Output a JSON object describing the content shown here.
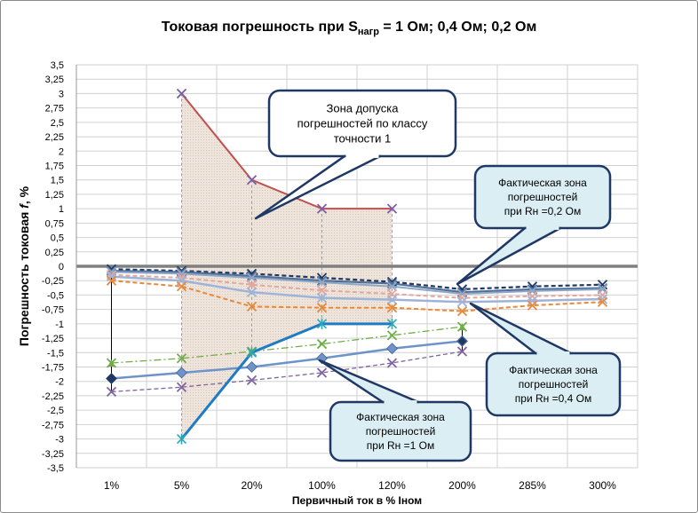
{
  "chart_data": {
    "type": "line",
    "title_main": "Токовая погрешность при S",
    "title_sub": "нагр",
    "title_rest": " = 1 Ом; 0,4 Ом; 0,2 Ом",
    "xlabel": "Первичный ток в % Iном",
    "ylabel_main": "Погрешность токовая ",
    "ylabel_italic": "f",
    "ylabel_unit": ", %",
    "categories": [
      "1%",
      "5%",
      "20%",
      "100%",
      "120%",
      "200%",
      "285%",
      "300%"
    ],
    "ylim": [
      -3.5,
      3.5
    ],
    "ytick_step": 0.25,
    "ytick_labels": [
      "3,5",
      "3,25",
      "3",
      "2,75",
      "2,5",
      "2,25",
      "2",
      "1,75",
      "1,5",
      "1,25",
      "1",
      "0,75",
      "0,5",
      "0,25",
      "0",
      "-0,25",
      "-0,5",
      "-0,75",
      "-1",
      "-1,25",
      "-1,5",
      "-1,75",
      "-2",
      "-2,25",
      "-2,5",
      "-2,75",
      "-3",
      "-3,25",
      "-3,5"
    ],
    "grid": true,
    "tolerance_zone": {
      "upper": [
        null,
        3,
        1.5,
        1,
        1,
        null,
        null,
        null
      ],
      "lower": [
        null,
        -3,
        -1.5,
        -1,
        -1,
        null,
        null,
        null
      ],
      "upper_color": "#c0504d",
      "lower_color": "#1f7bc4"
    },
    "series": [
      {
        "group": "0.2",
        "values": [
          -0.05,
          -0.08,
          -0.13,
          -0.2,
          -0.27,
          -0.4,
          -0.35,
          -0.32
        ],
        "color": "#1f3864",
        "dash": "5,3",
        "width": 2.2
      },
      {
        "group": "0.2",
        "values": [
          -0.08,
          -0.1,
          -0.17,
          -0.25,
          -0.3,
          -0.45,
          -0.4,
          -0.38
        ],
        "color": "#4f6e9a",
        "dash": "",
        "width": 2.2
      },
      {
        "group": "0.2",
        "values": [
          -0.1,
          -0.13,
          -0.2,
          -0.28,
          -0.35,
          -0.48,
          -0.43,
          -0.4
        ],
        "color": "#8ea7c4",
        "dash": "",
        "width": 2
      },
      {
        "group": "0.4",
        "values": [
          -0.15,
          -0.2,
          -0.32,
          -0.42,
          -0.48,
          -0.55,
          -0.52,
          -0.5
        ],
        "color": "#e6a69c",
        "dash": "5,3",
        "width": 2
      },
      {
        "group": "0.4",
        "values": [
          -0.18,
          -0.25,
          -0.45,
          -0.55,
          -0.58,
          -0.62,
          -0.6,
          -0.57
        ],
        "color": "#9eb3d8",
        "dash": "",
        "width": 2.5
      },
      {
        "group": "0.4",
        "values": [
          -0.25,
          -0.35,
          -0.7,
          -0.72,
          -0.72,
          -0.78,
          -0.68,
          -0.62
        ],
        "color": "#e8893a",
        "dash": "5,3",
        "width": 2
      },
      {
        "group": "1",
        "values": [
          -1.68,
          -1.6,
          -1.48,
          -1.35,
          -1.2,
          -1.05,
          null,
          null
        ],
        "color": "#70ad47",
        "dash": "8,3,2,3",
        "width": 1.3
      },
      {
        "group": "1",
        "values": [
          -1.95,
          -1.85,
          -1.75,
          -1.6,
          -1.43,
          -1.3,
          null,
          null
        ],
        "color": "#6d93c8",
        "dash": "",
        "width": 2.5
      },
      {
        "group": "1",
        "values": [
          -2.18,
          -2.1,
          -1.98,
          -1.85,
          -1.68,
          -1.48,
          null,
          null
        ],
        "color": "#8064a2",
        "dash": "5,3",
        "width": 1.3
      }
    ],
    "callouts": {
      "zone": "Зона допуска погрешностей по классу точности 1",
      "r02": "Фактическая зона погрешностей при Rн =0,2 Ом",
      "r04": "Фактическая зона погрешностей при Rн =0,4 Ом",
      "r1": "Фактическая зона погрешностей при Rн =1 Ом"
    }
  },
  "colors": {
    "zone_fill": "#ede3d9",
    "callout_fill": "#daeef3",
    "callout_stroke": "#1f3864",
    "zero_line": "#808080"
  }
}
